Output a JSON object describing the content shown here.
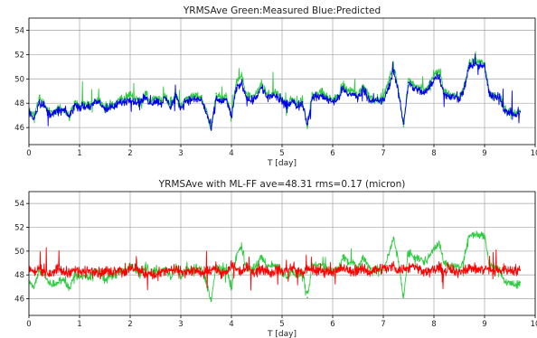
{
  "chart_data": [
    {
      "type": "line",
      "title": "YRMSAve Green:Measured     Blue:Predicted",
      "xlabel": "T [day]",
      "ylabel": "",
      "xlim": [
        0,
        10
      ],
      "ylim": [
        44.6,
        55
      ],
      "xticks": [
        0,
        1,
        2,
        3,
        4,
        5,
        6,
        7,
        8,
        9,
        10
      ],
      "yticks": [
        46,
        48,
        50,
        52,
        54
      ],
      "grid": true,
      "series": [
        {
          "color": "#2ecc40",
          "x": [
            0,
            0.1,
            0.2,
            0.3,
            0.4,
            0.5,
            0.6,
            0.7,
            0.8,
            0.9,
            1,
            1.1,
            1.2,
            1.3,
            1.4,
            1.5,
            1.6,
            1.7,
            1.8,
            1.9,
            2,
            2.1,
            2.2,
            2.3,
            2.4,
            2.5,
            2.6,
            2.7,
            2.8,
            2.9,
            3,
            3.1,
            3.2,
            3.3,
            3.4,
            3.5,
            3.6,
            3.7,
            3.8,
            3.9,
            4,
            4.1,
            4.2,
            4.3,
            4.4,
            4.5,
            4.6,
            4.7,
            4.8,
            4.9,
            5,
            5.1,
            5.2,
            5.3,
            5.4,
            5.5,
            5.6,
            5.7,
            5.8,
            5.9,
            6,
            6.1,
            6.2,
            6.3,
            6.4,
            6.5,
            6.6,
            6.7,
            6.8,
            6.9,
            7,
            7.1,
            7.2,
            7.3,
            7.4,
            7.5,
            7.6,
            7.7,
            7.8,
            7.9,
            8,
            8.1,
            8.2,
            8.3,
            8.4,
            8.5,
            8.6,
            8.7,
            8.8,
            8.9,
            9,
            9.1,
            9.2,
            9.3,
            9.4,
            9.5,
            9.6,
            9.7
          ],
          "y": [
            47.4,
            46.9,
            48.4,
            48,
            47.3,
            47.2,
            47.6,
            47.5,
            46.9,
            48.1,
            47.8,
            47.9,
            47.8,
            48.2,
            48.3,
            47.5,
            47.9,
            47.9,
            48.4,
            48.3,
            48.8,
            48.3,
            48.1,
            48.8,
            48.1,
            48.4,
            48.2,
            48.6,
            47.8,
            48.7,
            47.7,
            48.4,
            48.5,
            48.6,
            48.5,
            47.5,
            45.8,
            48.8,
            48.3,
            48.6,
            46.9,
            49.7,
            50.3,
            48.6,
            48.4,
            48.8,
            49.6,
            48.7,
            48.8,
            48.8,
            48.3,
            47.8,
            48.4,
            47.8,
            48.3,
            46.1,
            48.8,
            48.8,
            48.9,
            48.5,
            48.3,
            48.5,
            49.6,
            49,
            49.1,
            48.6,
            49.5,
            48.8,
            48.3,
            48.4,
            48.4,
            49.7,
            51.1,
            49.1,
            46.1,
            50,
            49.5,
            49.4,
            49.1,
            49.5,
            50.3,
            50.7,
            49,
            48.7,
            48.7,
            48.5,
            49.5,
            51.3,
            51.4,
            51.4,
            51.3,
            48.7,
            48.7,
            48.6,
            47.4,
            47.4,
            47.1,
            47.4
          ]
        },
        {
          "color": "#0000ee",
          "x": [
            0,
            0.1,
            0.2,
            0.3,
            0.4,
            0.5,
            0.6,
            0.7,
            0.8,
            0.9,
            1,
            1.1,
            1.2,
            1.3,
            1.4,
            1.5,
            1.6,
            1.7,
            1.8,
            1.9,
            2,
            2.1,
            2.2,
            2.3,
            2.4,
            2.5,
            2.6,
            2.7,
            2.8,
            2.9,
            3,
            3.1,
            3.2,
            3.3,
            3.4,
            3.5,
            3.6,
            3.7,
            3.8,
            3.9,
            4,
            4.1,
            4.2,
            4.3,
            4.4,
            4.5,
            4.6,
            4.7,
            4.8,
            4.9,
            5,
            5.1,
            5.2,
            5.3,
            5.4,
            5.5,
            5.6,
            5.7,
            5.8,
            5.9,
            6,
            6.1,
            6.2,
            6.3,
            6.4,
            6.5,
            6.6,
            6.7,
            6.8,
            6.9,
            7,
            7.1,
            7.2,
            7.3,
            7.4,
            7.5,
            7.6,
            7.7,
            7.8,
            7.9,
            8,
            8.1,
            8.2,
            8.3,
            8.4,
            8.5,
            8.6,
            8.7,
            8.8,
            8.9,
            9,
            9.1,
            9.2,
            9.3,
            9.4,
            9.5,
            9.6,
            9.7
          ],
          "y": [
            47.2,
            46.8,
            48.1,
            47.8,
            47.1,
            47.2,
            47.4,
            47.4,
            46.9,
            47.8,
            47.7,
            47.7,
            47.7,
            48,
            48.1,
            47.5,
            47.6,
            47.7,
            48.1,
            48.1,
            48.4,
            48.1,
            48.1,
            48.5,
            48,
            48.2,
            48,
            48.4,
            47.7,
            48.5,
            47.6,
            48.2,
            48.3,
            48.3,
            48.3,
            47.3,
            45.9,
            48.4,
            48.1,
            48.3,
            46.9,
            49.2,
            49.7,
            48.5,
            48.2,
            48.6,
            49.3,
            48.5,
            48.6,
            48.5,
            48.1,
            47.7,
            48.2,
            47.7,
            48.1,
            46.3,
            48.5,
            48.5,
            48.6,
            48.3,
            48.2,
            48.3,
            49.2,
            48.7,
            48.8,
            48.4,
            49.2,
            48.5,
            48.1,
            48.2,
            48.2,
            49.2,
            50.7,
            48.8,
            46.3,
            49.7,
            49.2,
            49.1,
            48.8,
            49.2,
            50,
            50.3,
            48.8,
            48.5,
            48.5,
            48.4,
            49.2,
            51.1,
            51.1,
            51.1,
            51,
            48.6,
            48.6,
            48.5,
            47.3,
            47.3,
            47,
            47.3
          ]
        }
      ]
    },
    {
      "type": "line",
      "title": "YRMSAve with ML-FF     ave=48.31     rms=0.17 (micron)",
      "xlabel": "T [day]",
      "ylabel": "",
      "xlim": [
        0,
        10
      ],
      "ylim": [
        44.6,
        55
      ],
      "xticks": [
        0,
        1,
        2,
        3,
        4,
        5,
        6,
        7,
        8,
        9,
        10
      ],
      "yticks": [
        46,
        48,
        50,
        52,
        54
      ],
      "grid": true,
      "series": [
        {
          "color": "#2ecc40",
          "x": [
            0,
            0.1,
            0.2,
            0.3,
            0.4,
            0.5,
            0.6,
            0.7,
            0.8,
            0.9,
            1,
            1.1,
            1.2,
            1.3,
            1.4,
            1.5,
            1.6,
            1.7,
            1.8,
            1.9,
            2,
            2.1,
            2.2,
            2.3,
            2.4,
            2.5,
            2.6,
            2.7,
            2.8,
            2.9,
            3,
            3.1,
            3.2,
            3.3,
            3.4,
            3.5,
            3.6,
            3.7,
            3.8,
            3.9,
            4,
            4.1,
            4.2,
            4.3,
            4.4,
            4.5,
            4.6,
            4.7,
            4.8,
            4.9,
            5,
            5.1,
            5.2,
            5.3,
            5.4,
            5.5,
            5.6,
            5.7,
            5.8,
            5.9,
            6,
            6.1,
            6.2,
            6.3,
            6.4,
            6.5,
            6.6,
            6.7,
            6.8,
            6.9,
            7,
            7.1,
            7.2,
            7.3,
            7.4,
            7.5,
            7.6,
            7.7,
            7.8,
            7.9,
            8,
            8.1,
            8.2,
            8.3,
            8.4,
            8.5,
            8.6,
            8.7,
            8.8,
            8.9,
            9,
            9.1,
            9.2,
            9.3,
            9.4,
            9.5,
            9.6,
            9.7
          ],
          "y": [
            47.4,
            46.9,
            48.4,
            48,
            47.3,
            47.2,
            47.6,
            47.5,
            46.9,
            48.1,
            47.8,
            47.9,
            47.8,
            48.2,
            48.3,
            47.5,
            47.9,
            47.9,
            48.4,
            48.3,
            48.8,
            48.3,
            48.1,
            48.8,
            48.1,
            48.4,
            48.2,
            48.6,
            47.8,
            48.7,
            47.7,
            48.4,
            48.5,
            48.6,
            48.5,
            47.5,
            45.8,
            48.8,
            48.3,
            48.6,
            46.9,
            49.7,
            50.3,
            48.6,
            48.4,
            48.8,
            49.6,
            48.7,
            48.8,
            48.8,
            48.3,
            47.8,
            48.4,
            47.8,
            48.3,
            46.1,
            48.8,
            48.8,
            48.9,
            48.5,
            48.3,
            48.5,
            49.6,
            49,
            49.1,
            48.6,
            49.5,
            48.8,
            48.3,
            48.4,
            48.4,
            49.7,
            51.1,
            49.1,
            46.1,
            50,
            49.5,
            49.4,
            49.1,
            49.5,
            50.3,
            50.7,
            49,
            48.7,
            48.7,
            48.5,
            49.5,
            51.3,
            51.4,
            51.4,
            51.3,
            48.7,
            48.7,
            48.6,
            47.4,
            47.4,
            47.1,
            47.4
          ]
        },
        {
          "color": "#ff0000",
          "x": [
            0,
            0.1,
            0.2,
            0.3,
            0.4,
            0.5,
            0.6,
            0.7,
            0.8,
            0.9,
            1,
            1.1,
            1.2,
            1.3,
            1.4,
            1.5,
            1.6,
            1.7,
            1.8,
            1.9,
            2,
            2.1,
            2.2,
            2.3,
            2.4,
            2.5,
            2.6,
            2.7,
            2.8,
            2.9,
            3,
            3.1,
            3.2,
            3.3,
            3.4,
            3.5,
            3.6,
            3.7,
            3.8,
            3.9,
            4,
            4.1,
            4.2,
            4.3,
            4.4,
            4.5,
            4.6,
            4.7,
            4.8,
            4.9,
            5,
            5.1,
            5.2,
            5.3,
            5.4,
            5.5,
            5.6,
            5.7,
            5.8,
            5.9,
            6,
            6.1,
            6.2,
            6.3,
            6.4,
            6.5,
            6.6,
            6.7,
            6.8,
            6.9,
            7,
            7.1,
            7.2,
            7.3,
            7.4,
            7.5,
            7.6,
            7.7,
            7.8,
            7.9,
            8,
            8.1,
            8.2,
            8.3,
            8.4,
            8.5,
            8.6,
            8.7,
            8.8,
            8.9,
            9,
            9.1,
            9.2,
            9.3,
            9.4,
            9.5,
            9.6,
            9.7
          ],
          "y": [
            48.5,
            48.2,
            48.6,
            48.3,
            48.1,
            48.4,
            48.5,
            48.2,
            48.3,
            48.4,
            48.3,
            48.2,
            48.4,
            48.5,
            48.1,
            48.3,
            48.2,
            48.4,
            48.5,
            48.2,
            48.4,
            48.6,
            48.3,
            48.1,
            48.2,
            47.9,
            48.2,
            48.3,
            48.4,
            48.4,
            48.3,
            48.2,
            48.3,
            48.4,
            48,
            48.3,
            48.4,
            48.5,
            48.2,
            48.1,
            48.9,
            48.5,
            48.3,
            48.6,
            48.4,
            48.3,
            48.5,
            48.4,
            48.2,
            48.5,
            48.3,
            48.4,
            48.6,
            48.3,
            48.2,
            48.4,
            48.5,
            48.3,
            48.3,
            48.4,
            48.2,
            48.4,
            48.6,
            48.3,
            48.3,
            48.5,
            48.4,
            48.3,
            48.4,
            48.5,
            48.6,
            48.5,
            48.8,
            48.4,
            48.5,
            48.6,
            48.8,
            48.5,
            48.4,
            48.3,
            48.4,
            48.6,
            48.3,
            48.5,
            48.2,
            48.3,
            48.5,
            48.6,
            48.5,
            48.4,
            48.5,
            48.5,
            48.3,
            48.4,
            48.5,
            48.4,
            48.4,
            48.4
          ]
        }
      ]
    }
  ]
}
